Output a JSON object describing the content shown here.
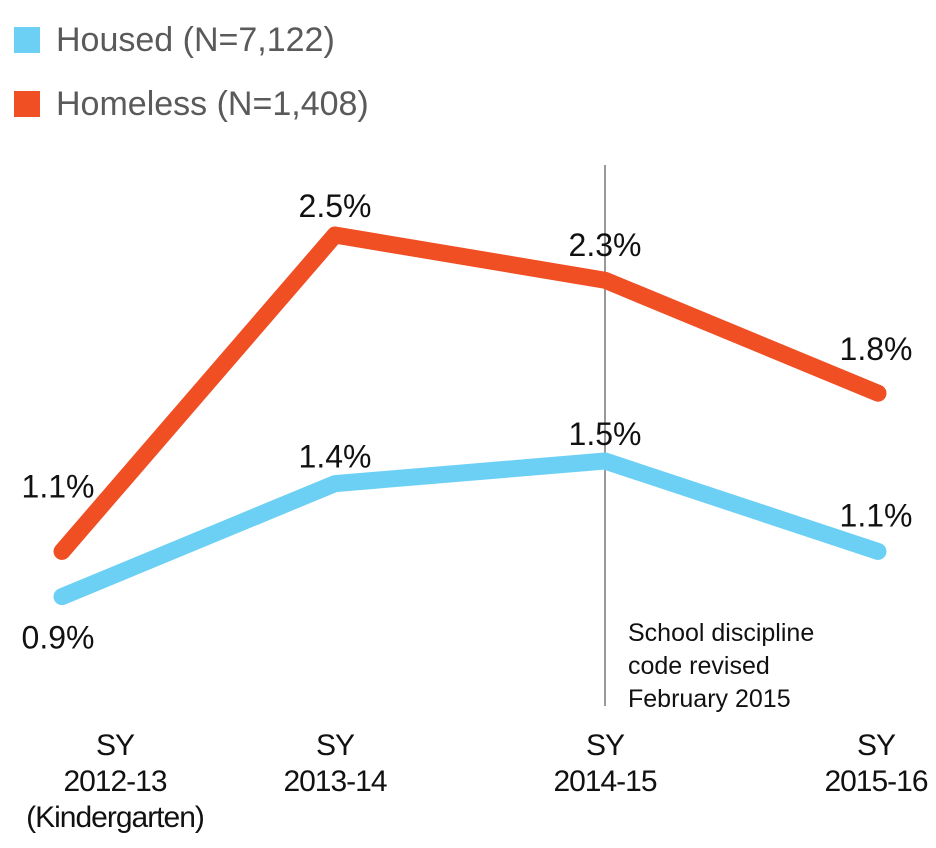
{
  "chart_data": {
    "type": "line",
    "title": "",
    "xlabel": "",
    "ylabel": "",
    "grid": false,
    "legend_position": "top-left",
    "categories": [
      [
        "SY",
        "2012-13",
        "(Kindergarten)"
      ],
      [
        "SY",
        "2013-14"
      ],
      [
        "SY",
        "2014-15"
      ],
      [
        "SY",
        "2015-16"
      ]
    ],
    "series": [
      {
        "name": "Housed (N=7,122)",
        "color": "#6cd0f5",
        "values": [
          0.9,
          1.4,
          1.5,
          1.1
        ],
        "labels": [
          "0.9%",
          "1.4%",
          "1.5%",
          "1.1%"
        ]
      },
      {
        "name": "Homeless (N=1,408)",
        "color": "#f04e23",
        "values": [
          1.1,
          2.5,
          2.3,
          1.8
        ],
        "labels": [
          "1.1%",
          "2.5%",
          "2.3%",
          "1.8%"
        ]
      }
    ],
    "annotation": {
      "at_category": 2,
      "lines": [
        "School discipline",
        "code revised",
        "February 2015"
      ],
      "color": "#999999"
    }
  }
}
